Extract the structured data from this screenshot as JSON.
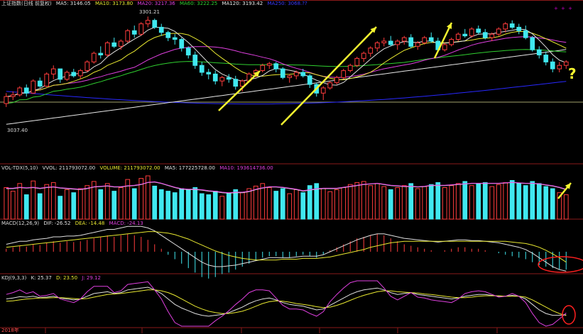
{
  "colors": {
    "up": "#ff3c3c",
    "down": "#40e8f0",
    "ma5": "#e0e0e0",
    "ma10": "#e8e830",
    "ma20": "#e040e0",
    "ma60": "#30d030",
    "ma120": "#e8e8e8",
    "ma250": "#2828ff",
    "grid": "#8a1a1a",
    "arrow": "#f5f530",
    "circle": "#ff2020"
  },
  "price_header": {
    "name": "上证指数(日线 前复权)",
    "ma5": "MA5: 3146.05",
    "ma10": "MA10: 3173.80",
    "ma20": "MA20: 3217.36",
    "ma60": "MA60: 3222.25",
    "ma120": "MA120: 3193.42",
    "ma250": "MA250: 3068.??"
  },
  "price_labels": {
    "high": "3301.21",
    "low": "3037.40"
  },
  "volume_header": {
    "name": "VOL-TDX(5,10)",
    "vvol": "VVOL: 211793072.00",
    "volume": "VOLUME: 211793072.00",
    "ma5": "MA5: 177225728.00",
    "ma10": "MA10: 193614736.00"
  },
  "macd_header": {
    "name": "MACD(12,26,9)",
    "dif": "DIF: -26.52",
    "dea": "DEA: -14.48",
    "macd": "MACD: -24.13"
  },
  "kdj_header": {
    "name": "KDJ(9,3,3)",
    "k": "K: 25.37",
    "d": "D: 23.50",
    "j": "J: 29.12"
  },
  "corner_text": "+ + +",
  "bottom_axis": {
    "first_label": "2018年"
  },
  "annotation_question": "?",
  "chart_data": {
    "type": "candlestick",
    "ylim": [
      2960,
      3320
    ],
    "candles": [
      [
        3050,
        3080,
        3040,
        3070
      ],
      [
        3070,
        3085,
        3060,
        3075
      ],
      [
        3075,
        3100,
        3070,
        3095
      ],
      [
        3095,
        3105,
        3070,
        3080
      ],
      [
        3080,
        3120,
        3078,
        3115
      ],
      [
        3115,
        3125,
        3095,
        3100
      ],
      [
        3100,
        3140,
        3098,
        3135
      ],
      [
        3135,
        3160,
        3120,
        3150
      ],
      [
        3150,
        3150,
        3110,
        3120
      ],
      [
        3120,
        3145,
        3115,
        3140
      ],
      [
        3140,
        3150,
        3125,
        3130
      ],
      [
        3130,
        3150,
        3120,
        3145
      ],
      [
        3145,
        3175,
        3140,
        3170
      ],
      [
        3170,
        3200,
        3165,
        3195
      ],
      [
        3195,
        3215,
        3180,
        3190
      ],
      [
        3190,
        3230,
        3185,
        3225
      ],
      [
        3225,
        3240,
        3210,
        3215
      ],
      [
        3215,
        3235,
        3205,
        3230
      ],
      [
        3230,
        3265,
        3225,
        3260
      ],
      [
        3260,
        3275,
        3240,
        3250
      ],
      [
        3250,
        3285,
        3245,
        3280
      ],
      [
        3280,
        3301,
        3270,
        3290
      ],
      [
        3290,
        3295,
        3265,
        3270
      ],
      [
        3270,
        3280,
        3245,
        3255
      ],
      [
        3255,
        3260,
        3230,
        3240
      ],
      [
        3240,
        3250,
        3220,
        3235
      ],
      [
        3235,
        3240,
        3200,
        3210
      ],
      [
        3210,
        3215,
        3180,
        3190
      ],
      [
        3190,
        3200,
        3150,
        3160
      ],
      [
        3160,
        3170,
        3130,
        3140
      ],
      [
        3140,
        3150,
        3120,
        3135
      ],
      [
        3135,
        3145,
        3105,
        3115
      ],
      [
        3115,
        3130,
        3100,
        3125
      ],
      [
        3125,
        3135,
        3110,
        3120
      ],
      [
        3120,
        3130,
        3090,
        3100
      ],
      [
        3100,
        3120,
        3085,
        3115
      ],
      [
        3115,
        3140,
        3110,
        3135
      ],
      [
        3135,
        3150,
        3125,
        3145
      ],
      [
        3145,
        3165,
        3140,
        3160
      ],
      [
        3160,
        3170,
        3150,
        3165
      ],
      [
        3165,
        3170,
        3140,
        3150
      ],
      [
        3150,
        3155,
        3120,
        3125
      ],
      [
        3125,
        3135,
        3110,
        3130
      ],
      [
        3130,
        3145,
        3120,
        3140
      ],
      [
        3140,
        3150,
        3125,
        3130
      ],
      [
        3130,
        3135,
        3095,
        3105
      ],
      [
        3105,
        3110,
        3070,
        3080
      ],
      [
        3080,
        3100,
        3060,
        3095
      ],
      [
        3095,
        3115,
        3090,
        3110
      ],
      [
        3110,
        3130,
        3105,
        3125
      ],
      [
        3125,
        3150,
        3120,
        3145
      ],
      [
        3145,
        3165,
        3140,
        3160
      ],
      [
        3160,
        3185,
        3155,
        3180
      ],
      [
        3180,
        3200,
        3170,
        3195
      ],
      [
        3195,
        3215,
        3185,
        3210
      ],
      [
        3210,
        3230,
        3200,
        3225
      ],
      [
        3225,
        3240,
        3215,
        3230
      ],
      [
        3230,
        3245,
        3215,
        3220
      ],
      [
        3220,
        3235,
        3205,
        3230
      ],
      [
        3230,
        3245,
        3220,
        3240
      ],
      [
        3240,
        3250,
        3210,
        3215
      ],
      [
        3215,
        3230,
        3205,
        3225
      ],
      [
        3225,
        3245,
        3220,
        3240
      ],
      [
        3240,
        3255,
        3225,
        3230
      ],
      [
        3230,
        3240,
        3200,
        3205
      ],
      [
        3205,
        3225,
        3200,
        3220
      ],
      [
        3220,
        3240,
        3215,
        3235
      ],
      [
        3235,
        3255,
        3230,
        3250
      ],
      [
        3250,
        3265,
        3240,
        3245
      ],
      [
        3245,
        3270,
        3240,
        3265
      ],
      [
        3265,
        3275,
        3250,
        3255
      ],
      [
        3255,
        3265,
        3235,
        3240
      ],
      [
        3240,
        3255,
        3230,
        3250
      ],
      [
        3250,
        3270,
        3245,
        3265
      ],
      [
        3265,
        3285,
        3255,
        3280
      ],
      [
        3280,
        3290,
        3265,
        3270
      ],
      [
        3270,
        3280,
        3250,
        3260
      ],
      [
        3260,
        3275,
        3235,
        3240
      ],
      [
        3240,
        3245,
        3200,
        3205
      ],
      [
        3205,
        3215,
        3180,
        3190
      ],
      [
        3190,
        3200,
        3160,
        3170
      ],
      [
        3170,
        3180,
        3140,
        3150
      ],
      [
        3150,
        3170,
        3140,
        3160
      ],
      [
        3160,
        3175,
        3150,
        3170
      ]
    ],
    "volume": [
      62,
      55,
      70,
      48,
      75,
      50,
      68,
      72,
      45,
      58,
      52,
      60,
      66,
      74,
      58,
      70,
      55,
      62,
      78,
      60,
      80,
      85,
      65,
      58,
      55,
      52,
      60,
      58,
      62,
      50,
      48,
      55,
      45,
      50,
      58,
      52,
      60,
      65,
      70,
      62,
      55,
      60,
      50,
      58,
      52,
      66,
      70,
      60,
      54,
      58,
      62,
      68,
      72,
      74,
      66,
      70,
      64,
      58,
      62,
      66,
      70,
      60,
      64,
      68,
      72,
      62,
      66,
      70,
      74,
      66,
      70,
      72,
      64,
      68,
      72,
      76,
      70,
      66,
      74,
      70,
      64,
      60,
      52,
      48
    ],
    "ma5_vol": [
      60,
      60,
      62,
      61,
      62,
      60,
      62,
      63,
      61,
      60,
      59,
      58,
      60,
      63,
      64,
      65,
      63,
      63,
      65,
      66,
      68,
      72,
      73,
      70,
      66,
      62,
      59,
      58,
      58,
      57,
      55,
      54,
      52,
      51,
      52,
      52,
      54,
      58,
      61,
      63,
      63,
      62,
      60,
      58,
      55,
      57,
      59,
      60,
      60,
      60,
      62,
      64,
      66,
      68,
      69,
      70,
      68,
      66,
      65,
      64,
      64,
      63,
      64,
      66,
      66,
      66,
      67,
      68,
      69,
      70,
      70,
      70,
      70,
      70,
      71,
      72,
      71,
      70,
      70,
      69,
      67,
      65,
      62,
      58
    ],
    "macd_hist": [
      4,
      6,
      8,
      7,
      10,
      9,
      12,
      14,
      12,
      14,
      13,
      14,
      16,
      18,
      20,
      22,
      20,
      22,
      24,
      22,
      20,
      16,
      10,
      4,
      -4,
      -10,
      -16,
      -22,
      -28,
      -34,
      -36,
      -34,
      -30,
      -28,
      -24,
      -20,
      -16,
      -12,
      -8,
      -6,
      -6,
      -8,
      -8,
      -6,
      -4,
      -6,
      -8,
      -4,
      2,
      6,
      10,
      14,
      18,
      20,
      22,
      24,
      22,
      18,
      14,
      10,
      8,
      6,
      4,
      2,
      0,
      2,
      4,
      6,
      6,
      4,
      4,
      2,
      0,
      -2,
      -4,
      -6,
      -8,
      -10,
      -14,
      -18,
      -20,
      -22,
      -24,
      -24
    ],
    "macd_dif": [
      10,
      12,
      14,
      14,
      16,
      17,
      18,
      20,
      20,
      21,
      21,
      22,
      24,
      26,
      28,
      30,
      30,
      32,
      34,
      34,
      34,
      32,
      28,
      22,
      16,
      10,
      4,
      -2,
      -8,
      -14,
      -18,
      -20,
      -20,
      -19,
      -18,
      -16,
      -14,
      -12,
      -10,
      -8,
      -8,
      -8,
      -8,
      -7,
      -6,
      -6,
      -6,
      -4,
      0,
      4,
      8,
      12,
      16,
      19,
      22,
      24,
      24,
      22,
      20,
      18,
      17,
      16,
      15,
      14,
      13,
      14,
      15,
      16,
      16,
      15,
      15,
      14,
      13,
      12,
      10,
      8,
      6,
      3,
      -2,
      -8,
      -14,
      -20,
      -24,
      -26
    ],
    "macd_dea": [
      6,
      7,
      8,
      9,
      10,
      11,
      12,
      13,
      14,
      15,
      16,
      17,
      18,
      19,
      20,
      21,
      22,
      23,
      24,
      25,
      26,
      27,
      27,
      26,
      25,
      23,
      20,
      17,
      13,
      9,
      5,
      1,
      -2,
      -5,
      -7,
      -9,
      -10,
      -11,
      -11,
      -11,
      -11,
      -10,
      -10,
      -10,
      -9,
      -9,
      -9,
      -8,
      -7,
      -5,
      -3,
      -1,
      1,
      3,
      6,
      8,
      10,
      12,
      13,
      14,
      14,
      14,
      14,
      14,
      14,
      14,
      14,
      14,
      14,
      14,
      14,
      14,
      14,
      14,
      14,
      13,
      12,
      11,
      9,
      6,
      2,
      -3,
      -8,
      -14
    ],
    "kdj_k": [
      60,
      62,
      65,
      64,
      66,
      63,
      64,
      66,
      62,
      60,
      58,
      60,
      66,
      72,
      74,
      76,
      72,
      74,
      80,
      82,
      84,
      86,
      80,
      72,
      60,
      48,
      40,
      34,
      28,
      24,
      22,
      24,
      26,
      30,
      36,
      42,
      50,
      56,
      60,
      62,
      58,
      52,
      48,
      46,
      44,
      40,
      36,
      38,
      46,
      54,
      62,
      70,
      76,
      80,
      82,
      84,
      80,
      74,
      70,
      72,
      74,
      70,
      68,
      66,
      64,
      62,
      60,
      62,
      66,
      68,
      70,
      70,
      68,
      66,
      66,
      68,
      66,
      60,
      48,
      36,
      28,
      24,
      24,
      25
    ],
    "kdj_d": [
      55,
      56,
      58,
      60,
      61,
      62,
      62,
      63,
      63,
      62,
      61,
      60,
      61,
      64,
      67,
      70,
      71,
      72,
      74,
      76,
      78,
      80,
      80,
      78,
      74,
      68,
      60,
      52,
      44,
      38,
      33,
      30,
      28,
      28,
      30,
      33,
      38,
      44,
      50,
      54,
      56,
      55,
      53,
      50,
      48,
      46,
      43,
      41,
      42,
      46,
      51,
      57,
      63,
      68,
      72,
      76,
      78,
      78,
      76,
      75,
      74,
      73,
      71,
      70,
      68,
      66,
      64,
      63,
      63,
      64,
      66,
      67,
      67,
      67,
      66,
      66,
      66,
      64,
      58,
      50,
      42,
      34,
      28,
      23.5
    ],
    "kdj_j": [
      70,
      74,
      80,
      72,
      76,
      66,
      68,
      72,
      60,
      56,
      52,
      60,
      76,
      88,
      88,
      88,
      74,
      78,
      92,
      94,
      96,
      98,
      80,
      60,
      32,
      8,
      0,
      0,
      0,
      0,
      0,
      12,
      22,
      34,
      48,
      60,
      74,
      80,
      80,
      78,
      62,
      46,
      38,
      38,
      36,
      28,
      22,
      32,
      54,
      70,
      84,
      96,
      100,
      100,
      100,
      100,
      84,
      66,
      58,
      66,
      74,
      64,
      62,
      58,
      56,
      54,
      52,
      60,
      72,
      76,
      78,
      76,
      70,
      64,
      66,
      72,
      66,
      52,
      28,
      8,
      0,
      4,
      16,
      29
    ]
  }
}
